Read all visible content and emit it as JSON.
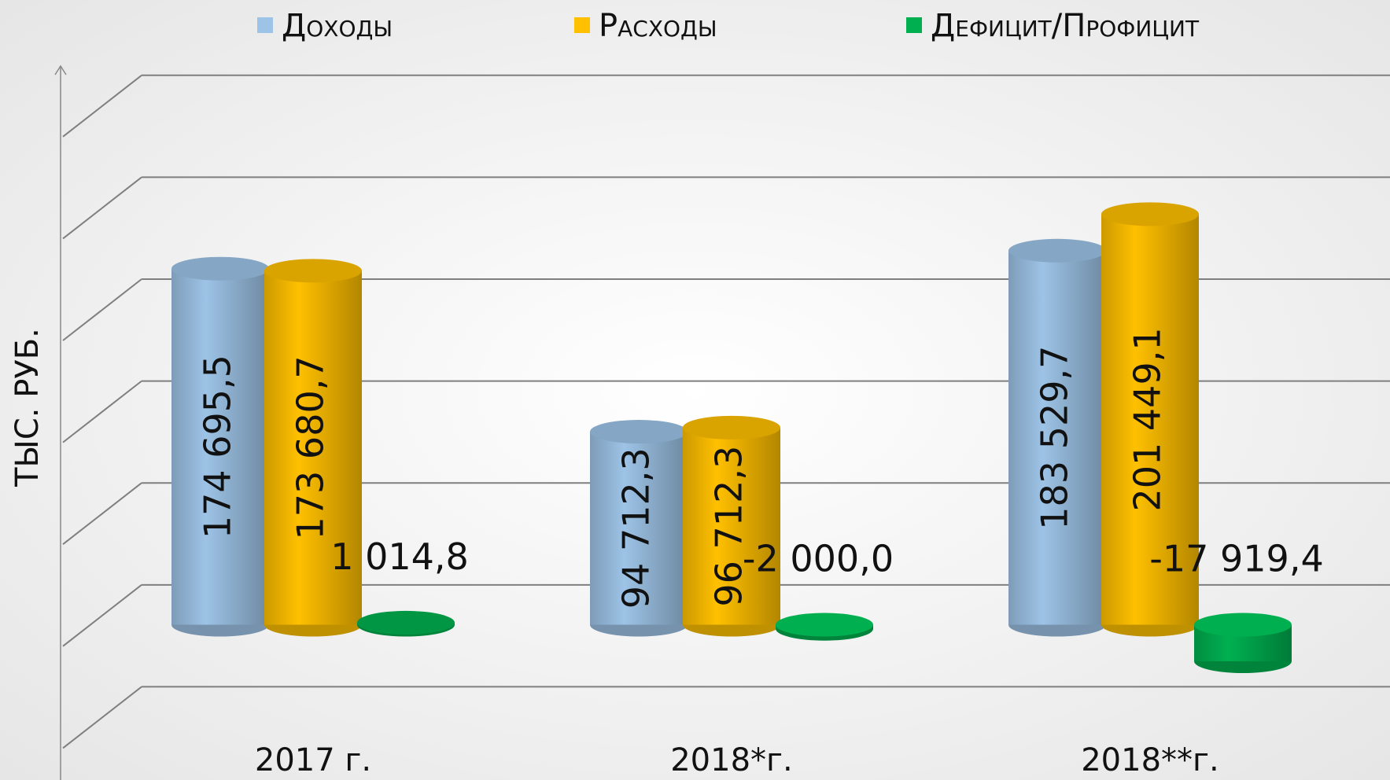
{
  "chart_data": {
    "type": "bar3d",
    "y_label": "ТЫС. РУБ.",
    "categories": [
      "2017 г.",
      "2018*г.",
      "2018**г."
    ],
    "series": [
      {
        "name": "Доходы",
        "color": "#9dc3e6",
        "values": [
          174695.5,
          94712.3,
          183529.7
        ],
        "value_labels": [
          "174 695,5",
          "94 712,3",
          "183 529,7"
        ]
      },
      {
        "name": "Расходы",
        "color": "#ffc000",
        "values": [
          173680.7,
          96712.3,
          201449.1
        ],
        "value_labels": [
          "173 680,7",
          "96 712,3",
          "201 449,1"
        ]
      },
      {
        "name": "Дефицит/Профицит",
        "color": "#00b050",
        "values": [
          1014.8,
          -2000.0,
          -17919.4
        ],
        "value_labels": [
          "1 014,8",
          "-2 000,0",
          "-17 919,4"
        ]
      }
    ],
    "ylim": [
      -50000,
      250000
    ],
    "yticks": [
      -50000,
      0,
      50000,
      100000,
      150000,
      200000,
      250000
    ],
    "grid": true,
    "legend": "top"
  }
}
